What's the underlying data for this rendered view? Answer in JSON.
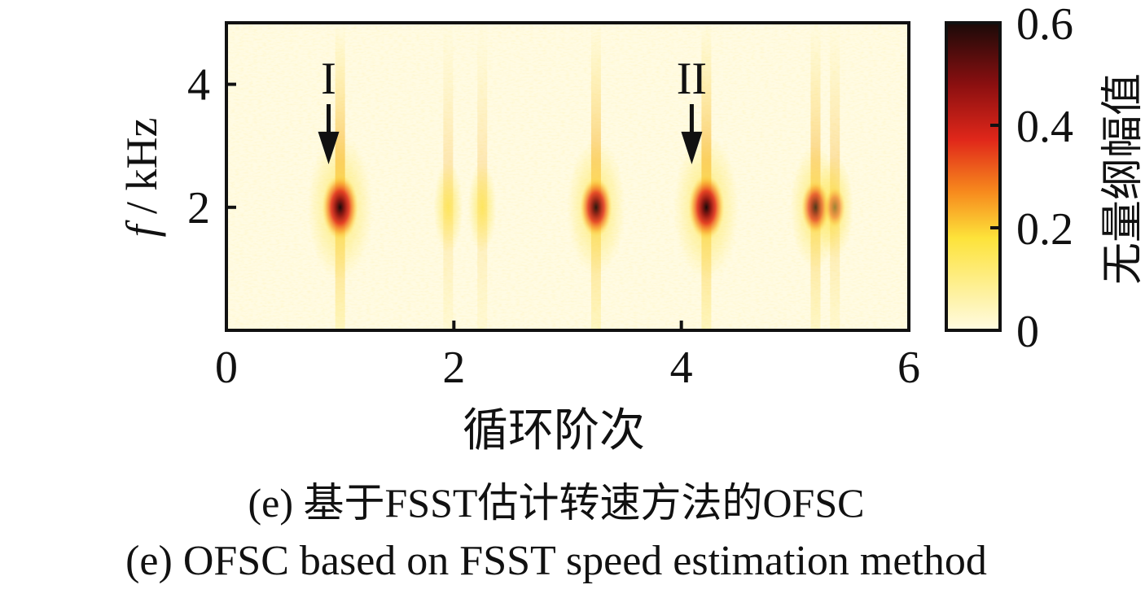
{
  "chart_data": {
    "type": "heatmap",
    "xlabel": "循环阶次",
    "ylabel_italic": "f",
    "ylabel_rest": " / kHz",
    "xlim": [
      0,
      6
    ],
    "ylim": [
      0,
      5
    ],
    "xticks": [
      0,
      2,
      4,
      6
    ],
    "yticks": [
      2,
      4
    ],
    "colorbar": {
      "label": "无量纲幅值",
      "range": [
        0,
        0.6
      ],
      "ticks": [
        "0",
        "0.2",
        "0.4",
        "0.6"
      ],
      "colors": [
        "#fffbe3",
        "#fde33a",
        "#f78a1d",
        "#e0271a",
        "#8a0f10",
        "#1a0a08"
      ]
    },
    "peaks": [
      {
        "x": 1.0,
        "y": 2.0,
        "value": 0.6
      },
      {
        "x": 1.95,
        "y": 2.0,
        "value": 0.09
      },
      {
        "x": 2.25,
        "y": 2.0,
        "value": 0.08
      },
      {
        "x": 3.25,
        "y": 2.0,
        "value": 0.5
      },
      {
        "x": 4.22,
        "y": 2.0,
        "value": 0.6
      },
      {
        "x": 5.18,
        "y": 2.0,
        "value": 0.4
      },
      {
        "x": 5.35,
        "y": 2.0,
        "value": 0.2
      }
    ],
    "annotations": [
      {
        "text": "I",
        "x": 0.87,
        "y": 2.7
      },
      {
        "text": "II",
        "x": 4.12,
        "y": 2.7
      }
    ]
  },
  "caption_zh": "(e)  基于FSST估计转速方法的OFSC",
  "caption_en": "(e)  OFSC based on FSST speed estimation method"
}
